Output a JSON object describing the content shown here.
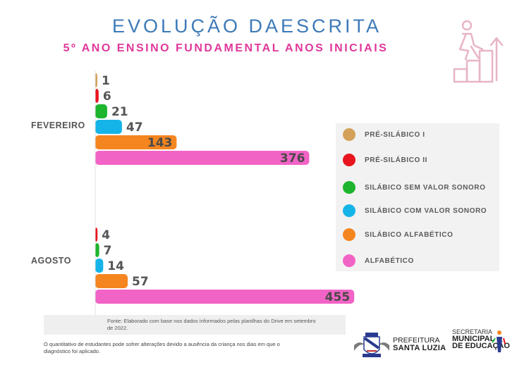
{
  "header": {
    "title": "EVOLUÇÃO DAESCRITA",
    "subtitle": "5º ANO ENSINO FUNDAMENTAL ANOS INICIAIS"
  },
  "chart_data": {
    "type": "bar",
    "orientation": "horizontal",
    "title": "EVOLUÇÃO DAESCRITA",
    "subtitle": "5º ANO ENSINO FUNDAMENTAL ANOS INICIAIS",
    "categories": [
      "FEVEREIRO",
      "AGOSTO"
    ],
    "series": [
      {
        "name": "PRÉ-SILÁBICO I",
        "color": "#d4a15a",
        "values": [
          1,
          null
        ]
      },
      {
        "name": "PRÉ-SILÁBICO II",
        "color": "#e8141e",
        "values": [
          6,
          4
        ]
      },
      {
        "name": "SILÁBICO SEM VALOR SONORO",
        "color": "#1db42e",
        "values": [
          21,
          7
        ]
      },
      {
        "name": "SILÁBICO COM VALOR SONORO",
        "color": "#14b4e8",
        "values": [
          47,
          14
        ]
      },
      {
        "name": "SILÁBICO ALFABÉTICO",
        "color": "#f5851f",
        "values": [
          143,
          57
        ]
      },
      {
        "name": "ALFABÉTICO",
        "color": "#f263c6",
        "values": [
          376,
          455
        ]
      }
    ],
    "xlim": [
      0,
      475
    ],
    "legend": "right",
    "grid": false
  },
  "legend": {
    "items": [
      {
        "label": "PRÉ-SILÁBICO I",
        "color": "#d4a15a"
      },
      {
        "label": "PRÉ-SILÁBICO II",
        "color": "#e8141e"
      },
      {
        "label": "SILÁBICO SEM VALOR SONORO",
        "color": "#1db42e"
      },
      {
        "label": "SILÁBICO COM VALOR SONORO",
        "color": "#14b4e8"
      },
      {
        "label": "SILÁBICO ALFABÉTICO",
        "color": "#f5851f"
      },
      {
        "label": "ALFABÉTICO",
        "color": "#f263c6"
      }
    ]
  },
  "source": {
    "line1": "Fonte: Elaborado com base nos dados informados pelas planilhas do Drive em  setembro",
    "line2": "de 2022."
  },
  "footnote": {
    "line1": "O quantitativo de estudantes pode sofrer alterações devido a ausência da criança nos dias em que o",
    "line2": "diagnóstico foi aplicado."
  },
  "logos": {
    "prefeitura_line1": "PREFEITURA",
    "prefeitura_line2": "SANTA LUZIA",
    "secretaria_line1": "SECRETARIA",
    "secretaria_line2": "MUNICIPAL",
    "secretaria_line3": "DE EDUCAÇÃO"
  },
  "icons": {
    "climb": "person-climbing-stairs-icon",
    "coat_of_arms": "coat-of-arms-icon",
    "education": "education-figure-icon"
  }
}
